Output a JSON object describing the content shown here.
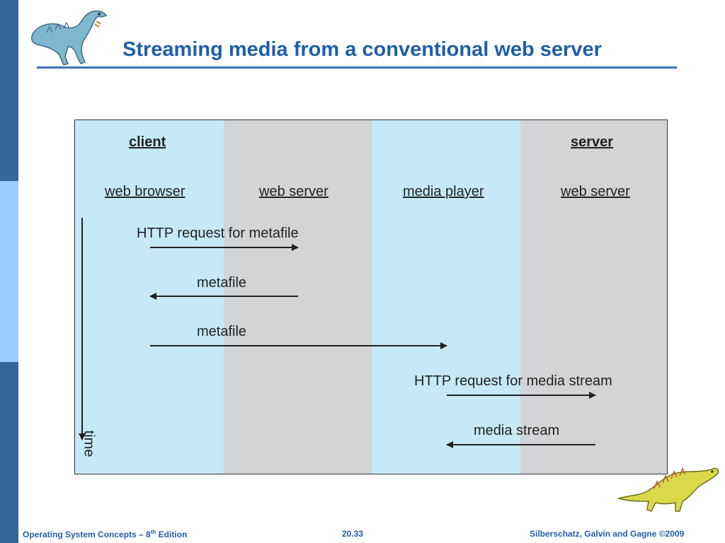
{
  "slide": {
    "title": "Streaming media from a conventional web server"
  },
  "diagram": {
    "client_label": "client",
    "server_label": "server",
    "columns": [
      "web browser",
      "web server",
      "media player",
      "web server"
    ],
    "time_label": "time",
    "messages": [
      {
        "label": "HTTP request for metafile"
      },
      {
        "label": "metafile"
      },
      {
        "label": "metafile"
      },
      {
        "label": "HTTP request for media stream"
      },
      {
        "label": "media stream"
      }
    ],
    "colors": {
      "light_band": "#c6e9f8",
      "gray_band": "#d2d4d5"
    }
  },
  "footer": {
    "book": "Operating System Concepts – 8",
    "book_sup": "th",
    "book_suffix": " Edition",
    "page": "20.33",
    "copyright": "Silberschatz, Galvin and Gagne ©2009"
  },
  "colors": {
    "sidebar_dark": "#336699",
    "sidebar_light": "#99ccff",
    "title": "#1f5fa8"
  }
}
